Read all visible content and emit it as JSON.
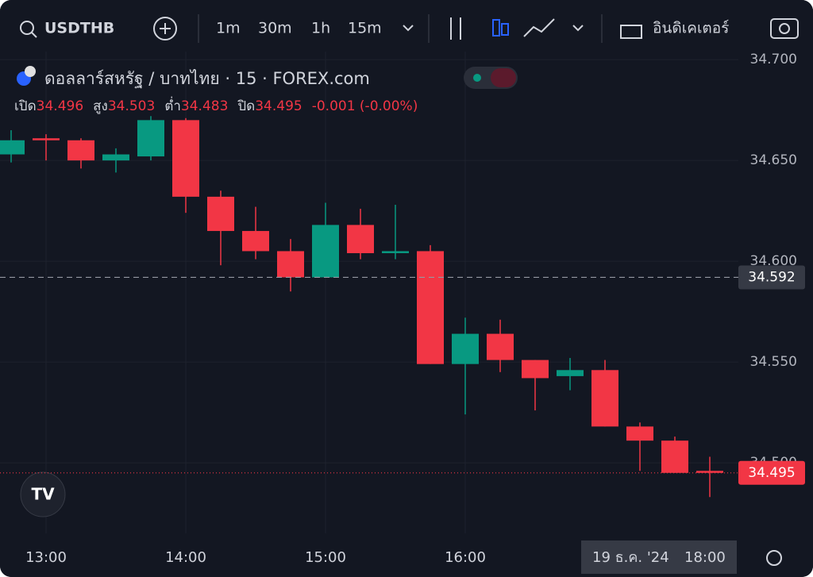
{
  "toolbar": {
    "symbol": "USDTHB",
    "intervals": [
      "1m",
      "30m",
      "1h",
      "15m"
    ],
    "active_interval": 3,
    "indicators": "อินดิเคเตอร์"
  },
  "chart_data": {
    "type": "candlestick",
    "title": "ดอลลาร์สหรัฐ / บาทไทย · 15 · FOREX.com",
    "ohlc_legend": [
      [
        "เปิด",
        "34.496"
      ],
      [
        "สูง",
        "34.503"
      ],
      [
        "ต่ำ",
        "34.483"
      ],
      [
        "ปิด",
        "34.495"
      ]
    ],
    "change": "-0.001 (-0.00%)",
    "categories": [
      null,
      "13:00",
      null,
      null,
      null,
      "14:00",
      null,
      null,
      null,
      "15:00",
      null,
      null,
      null,
      "16:00",
      null,
      null,
      null,
      null,
      null,
      null,
      null
    ],
    "open": [
      34.653,
      34.661,
      34.66,
      34.65,
      34.652,
      34.67,
      34.632,
      34.615,
      34.605,
      34.592,
      34.618,
      34.604,
      34.605,
      34.549,
      34.564,
      34.551,
      34.543,
      34.546,
      34.518,
      34.511,
      34.496
    ],
    "high": [
      34.665,
      34.663,
      34.661,
      34.656,
      34.672,
      34.671,
      34.635,
      34.627,
      34.611,
      34.629,
      34.626,
      34.628,
      34.608,
      34.572,
      34.571,
      34.551,
      34.552,
      34.551,
      34.52,
      34.513,
      34.503
    ],
    "low": [
      34.649,
      34.65,
      34.646,
      34.644,
      34.65,
      34.624,
      34.598,
      34.601,
      34.585,
      34.592,
      34.601,
      34.601,
      34.549,
      34.524,
      34.545,
      34.526,
      34.536,
      34.518,
      34.496,
      34.495,
      34.483
    ],
    "close": [
      34.66,
      34.66,
      34.65,
      34.653,
      34.67,
      34.632,
      34.615,
      34.605,
      34.592,
      34.618,
      34.604,
      34.605,
      34.549,
      34.564,
      34.551,
      34.542,
      34.546,
      34.518,
      34.511,
      34.495,
      34.495
    ],
    "up_color": "#089981",
    "down_color": "#f23645",
    "ylim": [
      34.465,
      34.704
    ],
    "yticks": [
      {
        "value": 34.5,
        "label": "34.500"
      },
      {
        "value": 34.55,
        "label": "34.550"
      },
      {
        "value": 34.6,
        "label": "34.600"
      },
      {
        "value": 34.65,
        "label": "34.650"
      },
      {
        "value": 34.7,
        "label": "34.700"
      }
    ],
    "price_lines": [
      {
        "value": 34.592,
        "color": "#9598a1",
        "dashed": true
      },
      {
        "value": 34.495,
        "color": "#f23645",
        "dashed": false
      }
    ],
    "time_marker": [
      "19 ธ.ค. '24",
      "18:00"
    ]
  }
}
